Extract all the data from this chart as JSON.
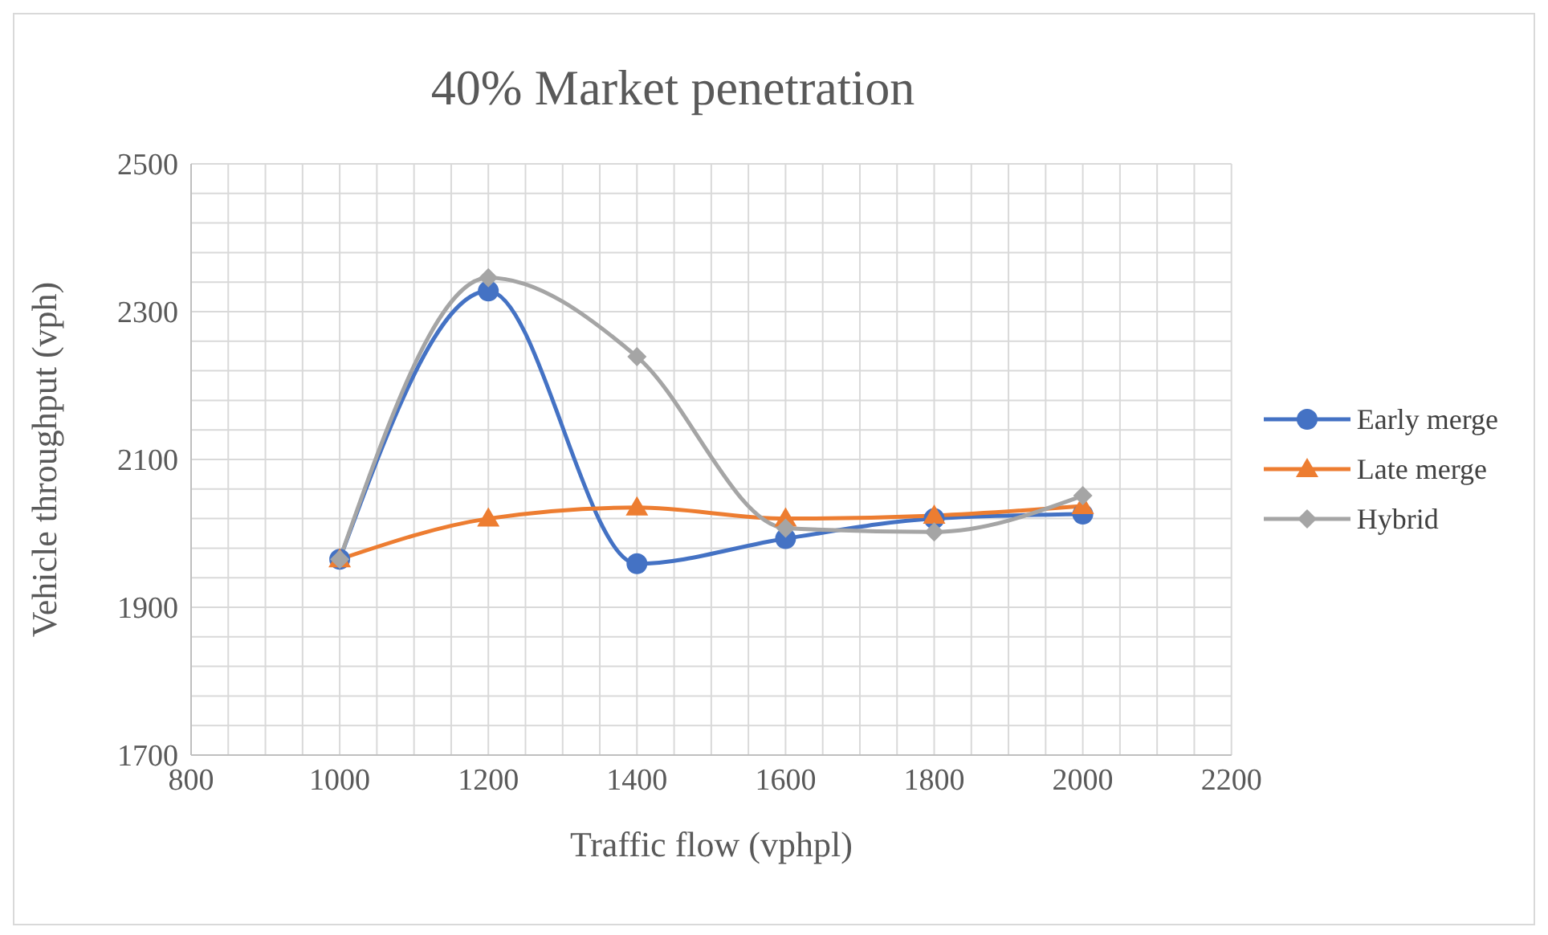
{
  "chart_data": {
    "type": "line",
    "title": "40% Market penetration",
    "xlabel": "Traffic flow (vphpl)",
    "ylabel": "Vehicle throughput (vph)",
    "x": [
      1000,
      1200,
      1400,
      1600,
      1800,
      2000
    ],
    "series": [
      {
        "name": "Early merge",
        "color": "#4472c4",
        "marker": "circle",
        "values": [
          1965,
          2328,
          1959,
          1993,
          2020,
          2026
        ]
      },
      {
        "name": "Late merge",
        "color": "#ed7d31",
        "marker": "triangle",
        "values": [
          1965,
          2020,
          2035,
          2020,
          2024,
          2037
        ]
      },
      {
        "name": "Hybrid",
        "color": "#a5a5a5",
        "marker": "diamond",
        "values": [
          1965,
          2346,
          2239,
          2007,
          2002,
          2051
        ]
      }
    ],
    "xlim": [
      800,
      2200
    ],
    "xticks": [
      800,
      {
        "value": 850,
        "label": null
      },
      {
        "value": 900,
        "label": null
      },
      {
        "value": 950,
        "label": null
      },
      1000,
      {
        "value": 1050,
        "label": null
      },
      {
        "value": 1100,
        "label": null
      },
      {
        "value": 1150,
        "label": null
      },
      1200,
      {
        "value": 1250,
        "label": null
      },
      {
        "value": 1300,
        "label": null
      },
      {
        "value": 1350,
        "label": null
      },
      1400,
      {
        "value": 1450,
        "label": null
      },
      {
        "value": 1500,
        "label": null
      },
      {
        "value": 1550,
        "label": null
      },
      1600,
      {
        "value": 1650,
        "label": null
      },
      {
        "value": 1700,
        "label": null
      },
      {
        "value": 1750,
        "label": null
      },
      1800,
      {
        "value": 1850,
        "label": null
      },
      {
        "value": 1900,
        "label": null
      },
      {
        "value": 1950,
        "label": null
      },
      2000,
      {
        "value": 2050,
        "label": null
      },
      {
        "value": 2100,
        "label": null
      },
      {
        "value": 2150,
        "label": null
      },
      2200
    ],
    "ylim": [
      1700,
      2500
    ],
    "yticks": [
      1700,
      {
        "value": 1740,
        "label": null
      },
      {
        "value": 1780,
        "label": null
      },
      {
        "value": 1820,
        "label": null
      },
      {
        "value": 1860,
        "label": null
      },
      1900,
      {
        "value": 1940,
        "label": null
      },
      {
        "value": 1980,
        "label": null
      },
      {
        "value": 2020,
        "label": null
      },
      {
        "value": 2060,
        "label": null
      },
      2100,
      {
        "value": 2140,
        "label": null
      },
      {
        "value": 2180,
        "label": null
      },
      {
        "value": 2220,
        "label": null
      },
      {
        "value": 2260,
        "label": null
      },
      2300,
      {
        "value": 2340,
        "label": null
      },
      {
        "value": 2380,
        "label": null
      },
      {
        "value": 2420,
        "label": null
      },
      {
        "value": 2460,
        "label": null
      },
      2500
    ],
    "grid": true,
    "legend": "right",
    "line_style": "solid"
  }
}
